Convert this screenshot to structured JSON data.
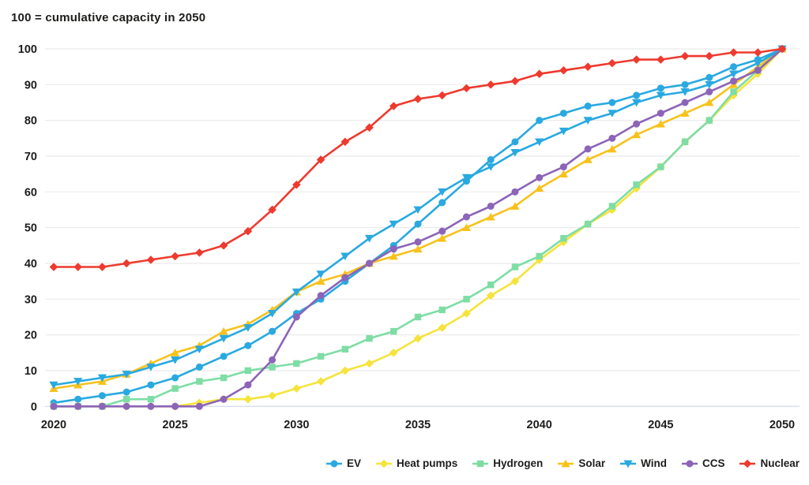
{
  "chart_data": {
    "type": "line",
    "title": "100 = cumulative capacity in 2050",
    "x_label": "",
    "y_label": "",
    "x": [
      2020,
      2021,
      2022,
      2023,
      2024,
      2025,
      2026,
      2027,
      2028,
      2029,
      2030,
      2031,
      2032,
      2033,
      2034,
      2035,
      2036,
      2037,
      2038,
      2039,
      2040,
      2041,
      2042,
      2043,
      2044,
      2045,
      2046,
      2047,
      2048,
      2049,
      2050
    ],
    "x_ticks": [
      2020,
      2025,
      2030,
      2035,
      2040,
      2045,
      2050
    ],
    "y_ticks": [
      0,
      10,
      20,
      30,
      40,
      50,
      60,
      70,
      80,
      90,
      100
    ],
    "ylim": [
      0,
      100
    ],
    "xlim": [
      2020,
      2050
    ],
    "grid": "horizontal",
    "legend_position": "bottom-right",
    "colors": {
      "blue": "#29a9e0",
      "yellow": "#f6e33b",
      "green": "#7edda5",
      "amber": "#f8c21c",
      "purple": "#8c64b8",
      "red": "#ee3a2e",
      "grid": "#ebebeb",
      "zero_line": "#d7deed",
      "text": "#1d1d1b"
    },
    "series": [
      {
        "name": "EV",
        "color": "#29a9e0",
        "marker": "circle",
        "values": [
          1,
          2,
          3,
          4,
          6,
          8,
          11,
          14,
          17,
          21,
          26,
          30,
          35,
          40,
          45,
          51,
          57,
          63,
          69,
          74,
          80,
          82,
          84,
          85,
          87,
          89,
          90,
          92,
          95,
          97,
          100
        ]
      },
      {
        "name": "Heat pumps",
        "color": "#f6e33b",
        "marker": "diamond",
        "values": [
          0,
          0,
          0,
          0,
          0,
          0,
          1,
          2,
          2,
          3,
          5,
          7,
          10,
          12,
          15,
          19,
          22,
          26,
          31,
          35,
          41,
          46,
          51,
          55,
          61,
          67,
          74,
          80,
          87,
          93,
          100
        ]
      },
      {
        "name": "Hydrogen",
        "color": "#7edda5",
        "marker": "square",
        "values": [
          0,
          0,
          0,
          2,
          2,
          5,
          7,
          8,
          10,
          11,
          12,
          14,
          16,
          19,
          21,
          25,
          27,
          30,
          34,
          39,
          42,
          47,
          51,
          56,
          62,
          67,
          74,
          80,
          88,
          94,
          100
        ]
      },
      {
        "name": "Solar",
        "color": "#f8c21c",
        "marker": "triangle-up",
        "values": [
          5,
          6,
          7,
          9,
          12,
          15,
          17,
          21,
          23,
          27,
          32,
          35,
          37,
          40,
          42,
          44,
          47,
          50,
          53,
          56,
          61,
          65,
          69,
          72,
          76,
          79,
          82,
          85,
          90,
          95,
          100
        ]
      },
      {
        "name": "Wind",
        "color": "#29a9e0",
        "marker": "triangle-down",
        "values": [
          6,
          7,
          8,
          9,
          11,
          13,
          16,
          19,
          22,
          26,
          32,
          37,
          42,
          47,
          51,
          55,
          60,
          64,
          67,
          71,
          74,
          77,
          80,
          82,
          85,
          87,
          88,
          90,
          93,
          96,
          100
        ]
      },
      {
        "name": "CCS",
        "color": "#8c64b8",
        "marker": "circle",
        "values": [
          0,
          0,
          0,
          0,
          0,
          0,
          0,
          2,
          6,
          13,
          25,
          31,
          36,
          40,
          44,
          46,
          49,
          53,
          56,
          60,
          64,
          67,
          72,
          75,
          79,
          82,
          85,
          88,
          91,
          94,
          100
        ]
      },
      {
        "name": "Nuclear",
        "color": "#ee3a2e",
        "marker": "diamond",
        "values": [
          39,
          39,
          39,
          40,
          41,
          42,
          43,
          45,
          49,
          55,
          62,
          69,
          74,
          78,
          84,
          86,
          87,
          89,
          90,
          91,
          93,
          94,
          95,
          96,
          97,
          97,
          98,
          98,
          99,
          99,
          100
        ]
      }
    ]
  }
}
